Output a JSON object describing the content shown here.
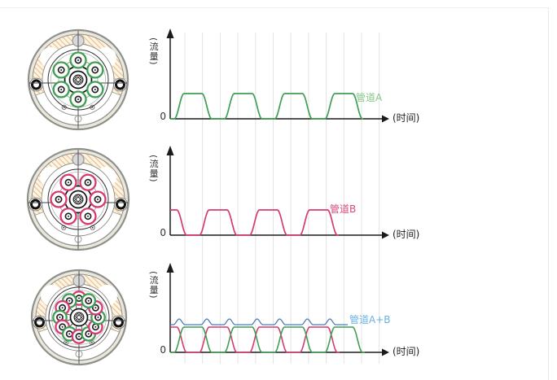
{
  "labels": {
    "flow_axis": "(流量)",
    "time_axis": "(时间)",
    "zero": "0",
    "pipe_a": "管道A",
    "pipe_b": "管道B",
    "pipe_ab": "管道A+B"
  },
  "colors": {
    "pipe_a": "#3f9f53",
    "pipe_a_label": "#85c98a",
    "pipe_b": "#d63a72",
    "pipe_b_label": "#d84a7d",
    "sum_line": "#4f7cba",
    "sum_label": "#6ab2e4",
    "axis": "#1b1b1b",
    "grid": "#e3e3e3",
    "text": "#333333",
    "hatch_bg": "#fcf5e5",
    "hatch_line": "#ecc493",
    "rim_fill": "#eae7df",
    "rim_stroke": "#90908a",
    "port_fill": "#d9d9d9"
  },
  "chart_data": [
    {
      "type": "line",
      "title": "",
      "xlabel": "(时间)",
      "ylabel": "(流量)",
      "origin_label": "0",
      "axis_numeric_ticks": "none (qualitative sketch)",
      "grid": "vertical gridlines only, 12 lines",
      "legend_position": "right of last pulse, inline",
      "series": [
        {
          "name": "管道A",
          "color": "#3f9f53",
          "shape": "periodic trapezoidal pulses with rounded corners",
          "pulses_shown": 4,
          "baseline": 0,
          "amplitude_norm": 1,
          "period_duty": {
            "rise": 0.19,
            "high": 0.36,
            "fall": 0.19,
            "low": 0.26
          },
          "phase": "starts at 0 flow at origin, first rise just after y-axis"
        }
      ]
    },
    {
      "type": "line",
      "title": "",
      "xlabel": "(时间)",
      "ylabel": "(流量)",
      "origin_label": "0",
      "grid": "vertical gridlines only, 12 lines",
      "series": [
        {
          "name": "管道B",
          "color": "#d63a72",
          "shape": "periodic trapezoidal pulses with rounded corners",
          "pulses_shown": 4,
          "baseline": 0,
          "amplitude_norm": 1,
          "period_duty": {
            "rise": 0.19,
            "high": 0.36,
            "fall": 0.19,
            "low": 0.26
          },
          "phase": "antiphase to 管道A (offset half period): starts HIGH at origin"
        }
      ]
    },
    {
      "type": "line",
      "title": "",
      "xlabel": "(时间)",
      "ylabel": "(流量)",
      "origin_label": "0",
      "grid": "vertical gridlines only, 12 lines",
      "series": [
        {
          "name": "管道A",
          "color": "#3f9f53",
          "shape": "same trapezoidal pulse train as chart 1"
        },
        {
          "name": "管道B",
          "color": "#d63a72",
          "shape": "same antiphase trapezoidal pulse train as chart 2"
        },
        {
          "name": "管道A+B",
          "color": "#4f7cba",
          "shape": "nearly constant total flow just above single-pipe amplitude, with small ripple bumps at every pulse crossover (every half period)"
        }
      ]
    }
  ],
  "diagrams": [
    {
      "name": "pump-head-pipe-a",
      "description": "multi-roller pump head cross-section, 6 rollers for pipe A",
      "roller_count": 6,
      "roller_color": "#3f9f53",
      "roller_angles_deg": [
        90,
        150,
        210,
        270,
        330,
        30
      ]
    },
    {
      "name": "pump-head-pipe-b",
      "description": "multi-roller pump head cross-section, 6 rollers for pipe B, rotated half pitch",
      "roller_count": 6,
      "roller_color": "#d63a72",
      "roller_angles_deg": [
        0,
        60,
        120,
        180,
        240,
        300
      ]
    },
    {
      "name": "pump-head-pipe-a-plus-b",
      "description": "combined head with 12 alternating rollers (A and B interleaved)",
      "roller_count": 12,
      "start_angle_deg": 90,
      "step_deg": 30,
      "alternating_colors": [
        "#d63a72",
        "#3f9f53"
      ]
    }
  ]
}
